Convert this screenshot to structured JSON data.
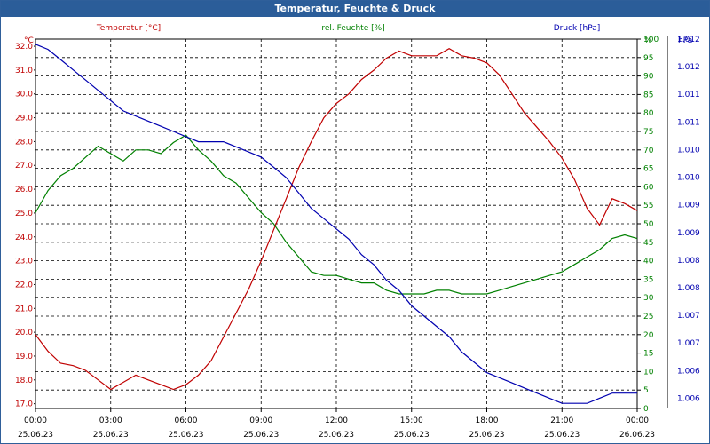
{
  "window": {
    "title": "Temperatur, Feuchte & Druck"
  },
  "chart_data": {
    "type": "line",
    "title": "Temperatur, Feuchte & Druck",
    "grid": true,
    "colors": {
      "temperature": "#c00000",
      "humidity": "#008000",
      "pressure": "#0000b0",
      "grid": "#000000",
      "title_bar": "#2b5d99"
    },
    "x_ticks": [
      {
        "time": "00:00",
        "date": "25.06.23"
      },
      {
        "time": "03:00",
        "date": "25.06.23"
      },
      {
        "time": "06:00",
        "date": "25.06.23"
      },
      {
        "time": "09:00",
        "date": "25.06.23"
      },
      {
        "time": "12:00",
        "date": "25.06.23"
      },
      {
        "time": "15:00",
        "date": "25.06.23"
      },
      {
        "time": "18:00",
        "date": "25.06.23"
      },
      {
        "time": "21:00",
        "date": "25.06.23"
      },
      {
        "time": "00:00",
        "date": "26.06.23"
      }
    ],
    "x_hours": [
      0,
      0.5,
      1,
      1.5,
      2,
      2.5,
      3,
      3.5,
      4,
      4.5,
      5,
      5.5,
      6,
      6.5,
      7,
      7.5,
      8,
      8.5,
      9,
      9.5,
      10,
      10.5,
      11,
      11.5,
      12,
      12.5,
      13,
      13.5,
      14,
      14.5,
      15,
      15.5,
      16,
      16.5,
      17,
      17.5,
      18,
      18.5,
      19,
      19.5,
      20,
      20.5,
      21,
      21.5,
      22,
      22.5,
      23,
      23.5,
      24
    ],
    "axes": {
      "temperature": {
        "label": "Temperatur [°C]",
        "unit": "°C",
        "range": [
          16.8,
          32.3
        ],
        "ticks": [
          "17.0",
          "18.0",
          "19.0",
          "20.0",
          "21.0",
          "22.0",
          "23.0",
          "24.0",
          "25.0",
          "26.0",
          "27.0",
          "28.0",
          "29.0",
          "30.0",
          "31.0",
          "32.0"
        ]
      },
      "humidity": {
        "label": "rel. Feuchte [%]",
        "unit": "%",
        "range": [
          0,
          100
        ],
        "ticks": [
          "0",
          "5",
          "10",
          "15",
          "20",
          "25",
          "30",
          "35",
          "40",
          "45",
          "50",
          "55",
          "60",
          "65",
          "70",
          "75",
          "80",
          "85",
          "90",
          "95",
          "100"
        ]
      },
      "pressure": {
        "label": "Druck [hPa]",
        "unit": "hPa",
        "range": [
          1005.4,
          1012.6
        ],
        "ticks": [
          "1.006",
          "1.006",
          "1.007",
          "1.007",
          "1.008",
          "1.008",
          "1.009",
          "1.009",
          "1.010",
          "1.010",
          "1.011",
          "1.011",
          "1.012",
          "1.012"
        ]
      }
    },
    "series": [
      {
        "name": "Temperatur [°C]",
        "axis": "temperature",
        "color": "#c00000",
        "values": [
          19.9,
          19.2,
          18.7,
          18.6,
          18.4,
          18.0,
          17.6,
          17.9,
          18.2,
          18.0,
          17.8,
          17.6,
          17.8,
          18.2,
          18.8,
          19.8,
          20.8,
          21.8,
          23.0,
          24.3,
          25.6,
          26.9,
          28.0,
          29.0,
          29.6,
          30.0,
          30.6,
          31.0,
          31.5,
          31.8,
          31.6,
          31.6,
          31.6,
          31.9,
          31.6,
          31.5,
          31.3,
          30.8,
          30.0,
          29.2,
          28.6,
          28.0,
          27.3,
          26.4,
          25.2,
          24.5,
          25.6,
          25.4,
          25.1
        ]
      },
      {
        "name": "rel. Feuchte [%]",
        "axis": "humidity",
        "color": "#008000",
        "values": [
          53,
          59,
          63,
          65,
          68,
          71,
          69,
          67,
          70,
          70,
          69,
          72,
          74,
          70,
          67,
          63,
          61,
          57,
          53,
          50,
          45,
          41,
          37,
          36,
          36,
          35,
          34,
          34,
          32,
          31,
          31,
          31,
          32,
          32,
          31,
          31,
          31,
          32,
          33,
          34,
          35,
          36,
          37,
          39,
          41,
          43,
          46,
          47,
          46
        ]
      },
      {
        "name": "Druck [hPa]",
        "axis": "pressure",
        "color": "#0000b0",
        "values": [
          1012.5,
          1012.4,
          1012.2,
          1012.0,
          1011.8,
          1011.6,
          1011.4,
          1011.2,
          1011.1,
          1011.0,
          1010.9,
          1010.8,
          1010.7,
          1010.6,
          1010.6,
          1010.6,
          1010.5,
          1010.4,
          1010.3,
          1010.1,
          1009.9,
          1009.6,
          1009.3,
          1009.1,
          1008.9,
          1008.7,
          1008.4,
          1008.2,
          1007.9,
          1007.7,
          1007.4,
          1007.2,
          1007.0,
          1006.8,
          1006.5,
          1006.3,
          1006.1,
          1006.0,
          1005.9,
          1005.8,
          1005.7,
          1005.6,
          1005.5,
          1005.5,
          1005.5,
          1005.6,
          1005.7,
          1005.7,
          1005.7
        ]
      }
    ]
  }
}
